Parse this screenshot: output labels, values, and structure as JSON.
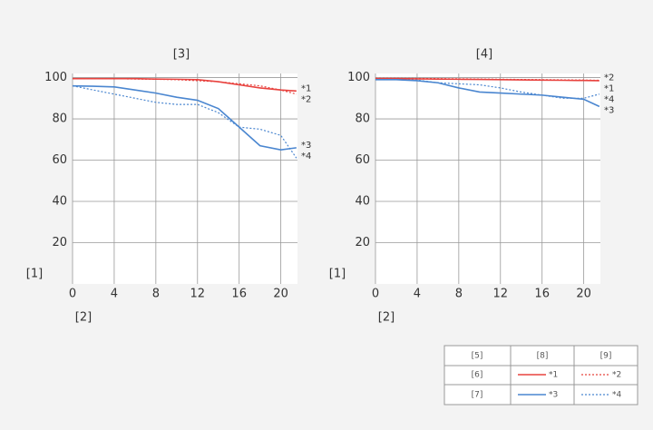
{
  "chart_data": [
    {
      "type": "line",
      "title": "[3]",
      "xlabel": "[2]",
      "ylabel": "[1]",
      "x": [
        0,
        2,
        4,
        6,
        8,
        10,
        12,
        14,
        16,
        18,
        20,
        21.5
      ],
      "xlim": [
        0,
        21.6
      ],
      "ylim": [
        0,
        102
      ],
      "xticks": [
        0,
        4,
        8,
        12,
        16,
        20
      ],
      "yticks": [
        20,
        40,
        60,
        80,
        100
      ],
      "grid": true,
      "series": [
        {
          "name": "*1",
          "color": "#e8433f",
          "style": "solid",
          "values": [
            99.5,
            99.5,
            99.5,
            99.5,
            99.3,
            99.2,
            99,
            98,
            96.5,
            95,
            94,
            93.5
          ]
        },
        {
          "name": "*2",
          "color": "#e8433f",
          "style": "dotted",
          "values": [
            99.5,
            99.5,
            99.5,
            99.3,
            99.2,
            99,
            98.5,
            98,
            97,
            96,
            94,
            92
          ]
        },
        {
          "name": "*3",
          "color": "#4a86d0",
          "style": "solid",
          "values": [
            96,
            95.8,
            95.5,
            94,
            92.5,
            90.5,
            89,
            85,
            76,
            67,
            65,
            66
          ]
        },
        {
          "name": "*4",
          "color": "#4a86d0",
          "style": "dotted",
          "values": [
            96,
            94,
            92,
            90,
            88,
            87,
            87,
            83,
            76,
            75,
            72,
            61
          ]
        }
      ]
    },
    {
      "type": "line",
      "title": "[4]",
      "xlabel": "[2]",
      "ylabel": "[1]",
      "x": [
        0,
        2,
        4,
        6,
        8,
        10,
        12,
        14,
        16,
        18,
        20,
        21.5
      ],
      "xlim": [
        0,
        21.6
      ],
      "ylim": [
        0,
        102
      ],
      "xticks": [
        0,
        4,
        8,
        12,
        16,
        20
      ],
      "yticks": [
        20,
        40,
        60,
        80,
        100
      ],
      "grid": true,
      "series": [
        {
          "name": "*1",
          "color": "#e8433f",
          "style": "solid",
          "values": [
            99.5,
            99.5,
            99.4,
            99.3,
            99.2,
            99.1,
            99,
            98.9,
            98.8,
            98.7,
            98.6,
            98.5
          ]
        },
        {
          "name": "*2",
          "color": "#e8433f",
          "style": "dotted",
          "values": [
            99.7,
            99.7,
            99.6,
            99.5,
            99.4,
            99.3,
            99.2,
            99.1,
            99,
            98.9,
            98.8,
            98.7
          ]
        },
        {
          "name": "*3",
          "color": "#4a86d0",
          "style": "solid",
          "values": [
            99,
            99,
            98.5,
            97.5,
            95,
            93,
            92.5,
            92,
            91.5,
            90.5,
            89.5,
            86
          ]
        },
        {
          "name": "*4",
          "color": "#4a86d0",
          "style": "dotted",
          "values": [
            99,
            99,
            98.8,
            97.5,
            97,
            96.5,
            95,
            93,
            91.5,
            90,
            90,
            92
          ]
        }
      ]
    }
  ],
  "legend_table": {
    "header": [
      "[5]",
      "[8]",
      "[9]"
    ],
    "rows": [
      [
        "[6]",
        "*1",
        "*2"
      ],
      [
        "[7]",
        "*3",
        "*4"
      ]
    ]
  }
}
